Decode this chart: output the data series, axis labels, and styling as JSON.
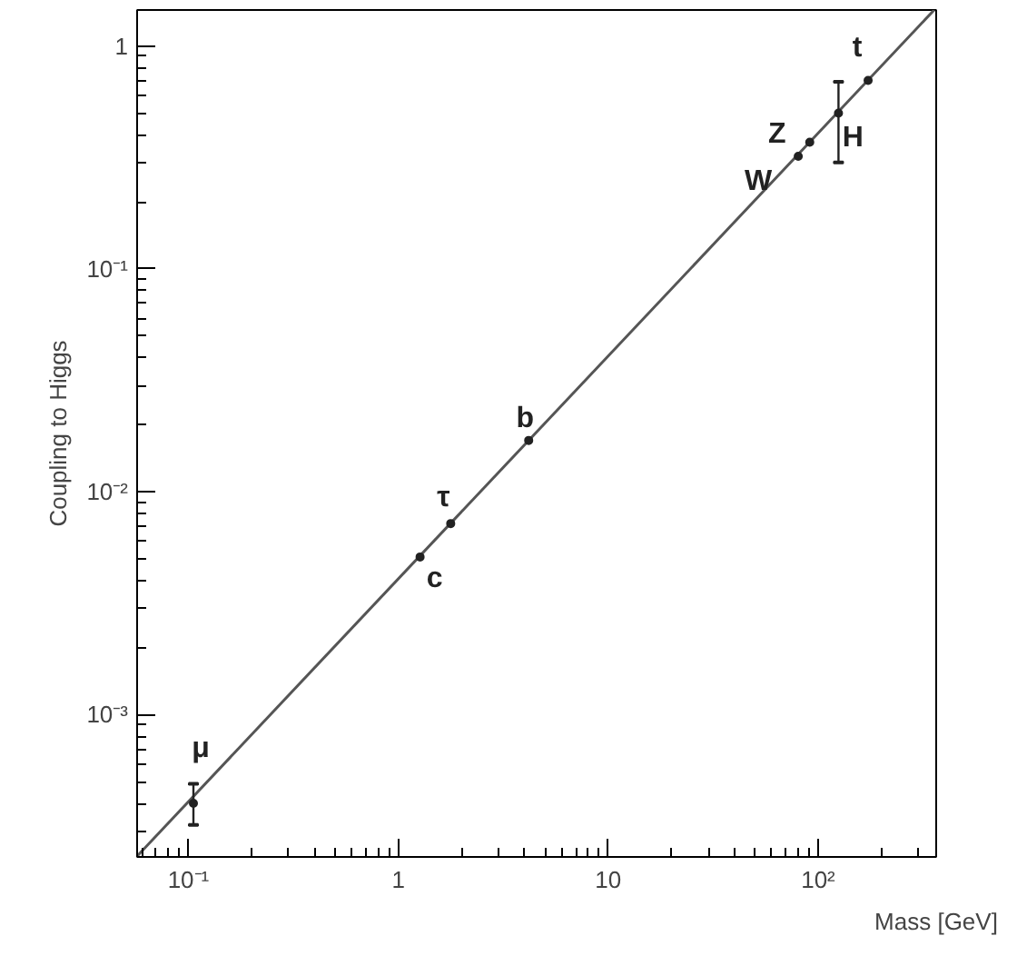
{
  "chart_data": {
    "type": "scatter",
    "xlabel": "Mass [GeV]",
    "ylabel": "Coupling to Higgs",
    "log": "xy",
    "grid": false,
    "xlim": [
      0.057,
      365
    ],
    "ylim": [
      0.00023,
      1.45
    ],
    "xticks": [
      {
        "value": 0.1,
        "label": "10⁻¹"
      },
      1,
      10,
      {
        "value": 100,
        "label": "10²"
      }
    ],
    "yticks": [
      {
        "value": 0.001,
        "label": "10⁻³"
      },
      {
        "value": 0.01,
        "label": "10⁻²"
      },
      {
        "value": 0.1,
        "label": "10⁻¹"
      },
      1
    ],
    "series": [
      {
        "type": "line",
        "color": "#555555",
        "x": [
          0.057,
          357
        ],
        "values": [
          0.000232,
          1.45
        ],
        "line_style": "solid"
      },
      {
        "marker": "circle",
        "color": "#222222",
        "x": [
          0.1057,
          1.27,
          1.777,
          4.18,
          80.4,
          91.2,
          125,
          173
        ],
        "values": [
          0.0004,
          0.0051,
          0.0072,
          0.017,
          0.32,
          0.37,
          0.5,
          0.7
        ],
        "errors": [
          [
            0.00032,
            0.00049
          ],
          null,
          null,
          null,
          null,
          null,
          [
            0.3,
            0.69
          ],
          null
        ]
      }
    ],
    "annotations": [
      {
        "text": "μ",
        "x": 0.1057,
        "y": 0.0004
      },
      {
        "text": "c",
        "x": 1.27,
        "y": 0.0051
      },
      {
        "text": "τ",
        "x": 1.777,
        "y": 0.0072
      },
      {
        "text": "b",
        "x": 4.18,
        "y": 0.017
      },
      {
        "text": "W",
        "x": 80.4,
        "y": 0.32
      },
      {
        "text": "Z",
        "x": 91.2,
        "y": 0.37
      },
      {
        "text": "H",
        "x": 125,
        "y": 0.5
      },
      {
        "text": "t",
        "x": 173,
        "y": 0.7
      }
    ]
  }
}
